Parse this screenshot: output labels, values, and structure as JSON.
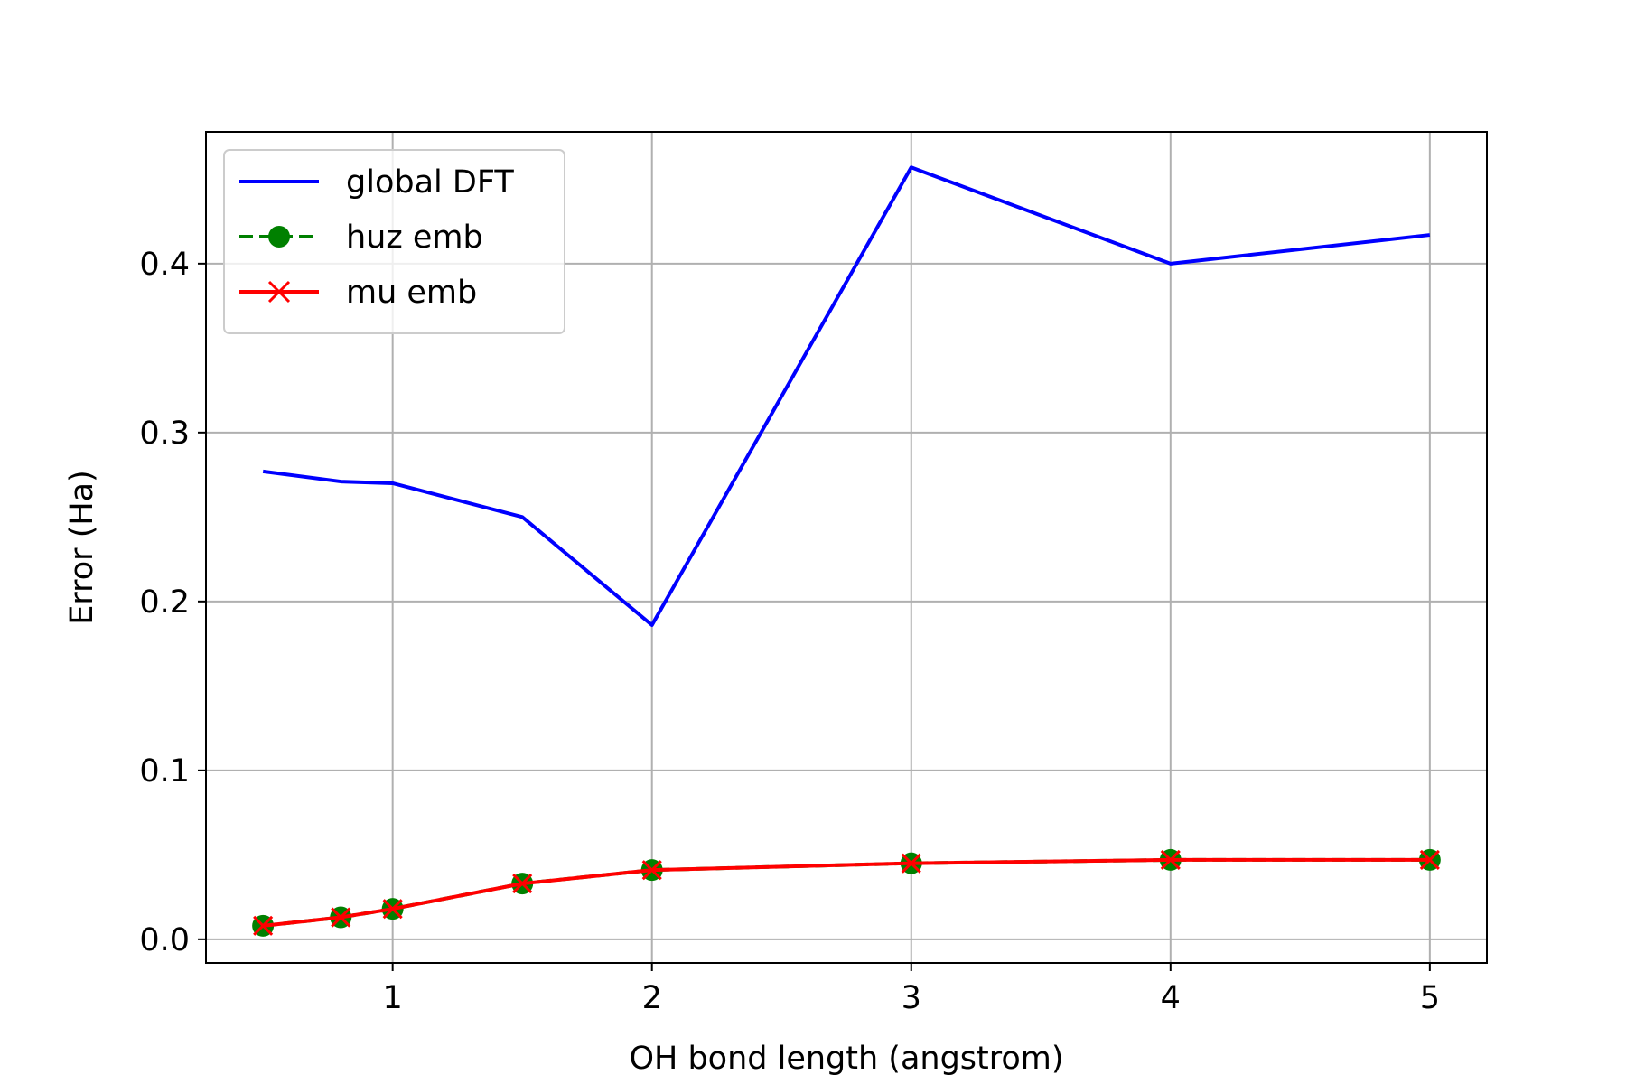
{
  "chart_data": {
    "type": "line",
    "title": "",
    "xlabel": "OH bond length (angstrom)",
    "ylabel": "Error (Ha)",
    "xlim": [
      0.28,
      5.22
    ],
    "ylim": [
      -0.014,
      0.478
    ],
    "xticks": [
      1,
      2,
      3,
      4,
      5
    ],
    "yticks": [
      0.0,
      0.1,
      0.2,
      0.3,
      0.4
    ],
    "xtick_labels": [
      "1",
      "2",
      "3",
      "4",
      "5"
    ],
    "ytick_labels": [
      "0.0",
      "0.1",
      "0.2",
      "0.3",
      "0.4"
    ],
    "grid": true,
    "legend_position": "upper left",
    "x": [
      0.5,
      0.8,
      1.0,
      1.5,
      2.0,
      3.0,
      4.0,
      5.0
    ],
    "series": [
      {
        "name": "global DFT",
        "color": "#0000ff",
        "style": "solid",
        "marker": "none",
        "values": [
          0.277,
          0.271,
          0.27,
          0.25,
          0.186,
          0.457,
          0.4,
          0.417
        ]
      },
      {
        "name": "huz emb",
        "color": "#008000",
        "style": "dashed",
        "marker": "circle",
        "values": [
          0.008,
          0.013,
          0.018,
          0.033,
          0.041,
          0.045,
          0.047,
          0.047
        ]
      },
      {
        "name": "mu emb",
        "color": "#ff0000",
        "style": "solid",
        "marker": "x",
        "values": [
          0.008,
          0.013,
          0.018,
          0.033,
          0.041,
          0.045,
          0.047,
          0.047
        ]
      }
    ]
  }
}
